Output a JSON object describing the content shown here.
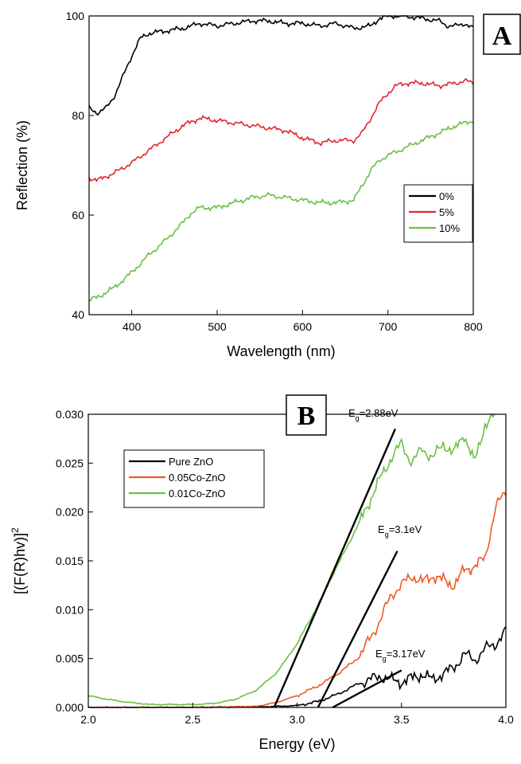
{
  "chart_data": [
    {
      "panel": "A",
      "type": "line",
      "xlabel": "Wavelength (nm)",
      "ylabel": "Reflection (%)",
      "xlim": [
        350,
        800
      ],
      "ylim": [
        40,
        100
      ],
      "xticks": [
        400,
        500,
        600,
        700,
        800
      ],
      "yticks": [
        40,
        60,
        80,
        100
      ],
      "legend_position": "right",
      "series": [
        {
          "name": "0%",
          "color": "#000000",
          "x": [
            350,
            360,
            370,
            380,
            390,
            400,
            410,
            420,
            440,
            460,
            480,
            500,
            520,
            540,
            560,
            580,
            600,
            620,
            640,
            660,
            680,
            690,
            700,
            720,
            740,
            760,
            770,
            780,
            790,
            800
          ],
          "y": [
            81.5,
            80.5,
            81.5,
            84,
            88,
            92,
            95.5,
            96.5,
            97,
            97.5,
            98.5,
            98,
            98.5,
            99,
            99,
            98.5,
            98.5,
            98,
            98.5,
            97.5,
            98,
            99.5,
            100,
            100,
            99.5,
            99,
            98,
            98,
            98.5,
            97.5
          ]
        },
        {
          "name": "5%",
          "color": "#e3262c",
          "x": [
            350,
            360,
            380,
            400,
            420,
            440,
            460,
            480,
            500,
            520,
            540,
            560,
            580,
            600,
            620,
            640,
            660,
            670,
            680,
            690,
            700,
            710,
            720,
            740,
            760,
            780,
            790,
            800
          ],
          "y": [
            67.5,
            67,
            68.5,
            70.5,
            73,
            75.5,
            78,
            79.5,
            79,
            78.5,
            78,
            77.5,
            77,
            75.5,
            74.5,
            75,
            75,
            76.5,
            79.5,
            82.5,
            84.5,
            86,
            86.5,
            86.5,
            86,
            86.5,
            87,
            86.5
          ]
        },
        {
          "name": "10%",
          "color": "#6bbf45",
          "x": [
            350,
            360,
            380,
            400,
            420,
            440,
            460,
            470,
            480,
            500,
            520,
            540,
            560,
            580,
            600,
            620,
            640,
            660,
            670,
            680,
            690,
            700,
            720,
            740,
            760,
            780,
            790,
            800
          ],
          "y": [
            43,
            43.5,
            45.5,
            48.5,
            52,
            55,
            58.5,
            60.5,
            61.5,
            61.5,
            62.5,
            63.5,
            64,
            63.5,
            63,
            62.5,
            62.5,
            63,
            66,
            69,
            71,
            72,
            73.5,
            75,
            76.5,
            78,
            78.5,
            79
          ]
        }
      ]
    },
    {
      "panel": "B",
      "type": "line",
      "xlabel": "Energy (eV)",
      "ylabel": "[(F(R)hv)]",
      "ylabel_sup": "2",
      "xlim": [
        2.0,
        4.0
      ],
      "ylim": [
        0.0,
        0.03
      ],
      "xticks": [
        2.0,
        2.5,
        3.0,
        3.5,
        4.0
      ],
      "yticks": [
        0.0,
        0.005,
        0.01,
        0.015,
        0.02,
        0.025,
        0.03
      ],
      "legend_position": "upper-left",
      "series": [
        {
          "name": "Pure ZnO",
          "color": "#000000",
          "x": [
            2.0,
            2.5,
            2.9,
            3.0,
            3.1,
            3.2,
            3.3,
            3.4,
            3.45,
            3.5,
            3.55,
            3.6,
            3.65,
            3.7,
            3.75,
            3.8,
            3.85,
            3.9,
            3.95,
            4.0
          ],
          "y": [
            0.0,
            0.0,
            0.0001,
            0.0002,
            0.0006,
            0.0014,
            0.0025,
            0.0032,
            0.0028,
            0.0026,
            0.003,
            0.0034,
            0.0028,
            0.0035,
            0.004,
            0.0055,
            0.0048,
            0.006,
            0.0065,
            0.0078
          ]
        },
        {
          "name": "0.05Co-ZnO",
          "color": "#f05a28",
          "x": [
            2.0,
            2.5,
            2.8,
            2.9,
            3.0,
            3.1,
            3.2,
            3.3,
            3.4,
            3.45,
            3.5,
            3.55,
            3.6,
            3.65,
            3.7,
            3.75,
            3.8,
            3.85,
            3.9,
            3.95,
            4.0
          ],
          "y": [
            0.0,
            0.0,
            0.0001,
            0.0005,
            0.0012,
            0.0022,
            0.0035,
            0.0052,
            0.009,
            0.0115,
            0.0125,
            0.0135,
            0.0128,
            0.0135,
            0.013,
            0.0125,
            0.014,
            0.0145,
            0.0152,
            0.0205,
            0.022
          ]
        },
        {
          "name": "0.01Co-ZnO",
          "color": "#6bbf45",
          "x": [
            2.0,
            2.1,
            2.2,
            2.3,
            2.4,
            2.5,
            2.6,
            2.7,
            2.8,
            2.9,
            3.0,
            3.1,
            3.2,
            3.3,
            3.4,
            3.45,
            3.5,
            3.55,
            3.6,
            3.65,
            3.7,
            3.75,
            3.8,
            3.85,
            3.9,
            3.95
          ],
          "y": [
            0.0012,
            0.0008,
            0.0005,
            0.0003,
            0.0003,
            0.0003,
            0.0004,
            0.0008,
            0.0017,
            0.0035,
            0.0065,
            0.0105,
            0.0148,
            0.019,
            0.0235,
            0.0255,
            0.027,
            0.025,
            0.0265,
            0.0255,
            0.027,
            0.026,
            0.028,
            0.025,
            0.029,
            0.03
          ]
        }
      ],
      "fit_lines": [
        {
          "x": [
            2.89,
            3.47
          ],
          "y": [
            0.0,
            0.0285
          ]
        },
        {
          "x": [
            3.1,
            3.48
          ],
          "y": [
            0.0,
            0.016
          ]
        },
        {
          "x": [
            3.17,
            3.5
          ],
          "y": [
            0.0,
            0.0038
          ]
        }
      ]
    }
  ],
  "panels": {
    "a_label": "A",
    "b_label": "B"
  },
  "annotations": [
    {
      "base": "E",
      "sub": "g",
      "value": "=2.88eV"
    },
    {
      "base": "E",
      "sub": "g",
      "value": "=3.1eV"
    },
    {
      "base": "E",
      "sub": "g",
      "value": "=3.17eV"
    }
  ]
}
